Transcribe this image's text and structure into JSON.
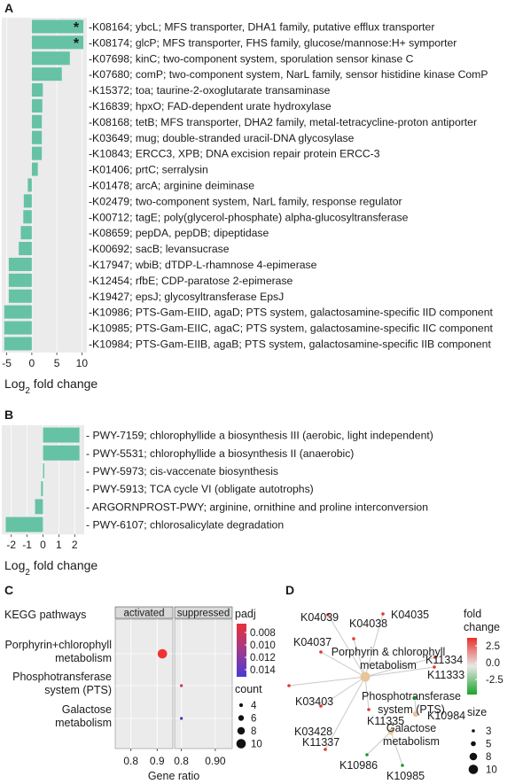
{
  "chart_data": [
    {
      "panel": "A",
      "type": "bar",
      "orientation": "horizontal",
      "xlabel": "Log2 fold change",
      "xlim": [
        -6,
        11
      ],
      "xticks": [
        -5,
        0,
        5,
        10
      ],
      "bar_color": "#66c2a5",
      "categories": [
        "-K08164; ybcL; MFS transporter, DHA1 family, putative efflux transporter",
        "-K08174; glcP; MFS transporter, FHS family, glucose/mannose:H+ symporter",
        "-K07698; kinC; two-component system, sporulation sensor kinase C",
        "-K07680; comP; two-component system, NarL family, sensor histidine kinase ComP",
        "-K15372; toa; taurine-2-oxoglutarate transaminase",
        "-K16839; hpxO; FAD-dependent urate hydroxylase",
        "-K08168; tetB; MFS transporter, DHA2 family, metal-tetracycline-proton antiporter",
        "-K03649; mug; double-stranded uracil-DNA glycosylase",
        "-K10843; ERCC3, XPB; DNA excision repair protein ERCC-3",
        "-K01406; prtC; serralysin",
        "-K01478; arcA; arginine deiminase",
        "-K02479; two-component system, NarL family, response regulator",
        "-K00712; tagE; poly(glycerol-phosphate) alpha-glucosyltransferase",
        "-K08659; pepDA, pepDB; dipeptidase",
        "-K00692; sacB; levansucrase",
        "-K17947; wbiB; dTDP-L-rhamnose 4-epimerase",
        "-K12454; rfbE; CDP-paratose 2-epimerase",
        "-K19427; epsJ; glycosyltransferase EpsJ",
        "-K10986; PTS-Gam-EIID, agaD; PTS system, galactosamine-specific IID component",
        "-K10985; PTS-Gam-EIIC, agaC; PTS system, galactosamine-specific IIC component",
        "-K10984; PTS-Gam-EIIB, agaB; PTS system, galactosamine-specific IIB component"
      ],
      "values": [
        10.3,
        10.3,
        7.6,
        6.0,
        2.2,
        2.1,
        2.0,
        2.0,
        2.0,
        1.2,
        -0.8,
        -1.6,
        -1.7,
        -2.2,
        -2.6,
        -4.6,
        -4.6,
        -4.6,
        -5.5,
        -5.5,
        -5.5
      ],
      "significant": [
        true,
        true,
        false,
        false,
        false,
        false,
        false,
        false,
        false,
        false,
        false,
        false,
        false,
        false,
        false,
        false,
        false,
        false,
        false,
        false,
        false
      ],
      "star": "*"
    },
    {
      "panel": "B",
      "type": "bar",
      "orientation": "horizontal",
      "xlabel": "Log2 fold change",
      "xlim": [
        -2.6,
        2.6
      ],
      "xticks": [
        -2,
        -1,
        0,
        1,
        2
      ],
      "bar_color": "#66c2a5",
      "categories": [
        "- PWY-7159; chlorophyllide a biosynthesis III (aerobic, light independent)",
        "- PWY-5531; chlorophyllide a biosynthesis II (anaerobic)",
        "- PWY-5973; cis-vaccenate biosynthesis",
        "- PWY-5913; TCA cycle VI (obligate autotrophs)",
        "- ARGORNPROST-PWY; arginine, ornithine and proline interconversion",
        "- PWY-6107; chlorosalicylate degradation"
      ],
      "values": [
        2.3,
        2.3,
        0.08,
        -0.12,
        -0.5,
        -2.35
      ]
    },
    {
      "panel": "C",
      "type": "scatter",
      "row_title": "KEGG pathways",
      "facets": [
        "activated",
        "suppressed"
      ],
      "xlabel": "Gene ratio",
      "facet_xticks": [
        [
          0.8,
          0.9
        ],
        [
          0.8,
          0.9
        ]
      ],
      "facet_xticklabels": [
        [
          "0.8",
          "0.9"
        ],
        [
          "0.8",
          "0.90"
        ]
      ],
      "facet_xlim": [
        [
          0.74,
          0.96
        ],
        [
          0.78,
          0.95
        ]
      ],
      "categories": [
        "Porphyrin+chlorophyll metabolism",
        "Phosphotransferase system (PTS)",
        "Galactose metabolism"
      ],
      "category_lines": [
        [
          "Porphyrin+chlorophyll",
          "metabolism"
        ],
        [
          "Phosphotransferase",
          "system (PTS)"
        ],
        [
          "Galactose",
          "metabolism"
        ]
      ],
      "points": [
        {
          "facet": "activated",
          "category": 0,
          "x": 0.92,
          "count": 10,
          "padj": 0.008
        },
        {
          "facet": "suppressed",
          "category": 1,
          "x": 0.8,
          "count": 3,
          "padj": 0.009
        },
        {
          "facet": "suppressed",
          "category": 2,
          "x": 0.8,
          "count": 3,
          "padj": 0.013
        }
      ],
      "color_legend": {
        "title": "padj",
        "ticks": [
          "0.008",
          "0.010",
          "0.012",
          "0.014"
        ],
        "colors": [
          "#e8303a",
          "#a03a8a",
          "#4a3ad8"
        ]
      },
      "size_legend": {
        "title": "count",
        "values": [
          4,
          6,
          8,
          10
        ]
      }
    },
    {
      "panel": "D",
      "type": "network",
      "hubs": [
        {
          "id": "porph",
          "lines": [
            "Porphyrin & chlorophyll",
            "metabolism"
          ],
          "size": 10
        },
        {
          "id": "pts",
          "lines": [
            "Phosphotransferase",
            "system (PTS)"
          ],
          "size": 3
        },
        {
          "id": "gal",
          "lines": [
            "Galactose",
            "metabolism"
          ],
          "size": 3
        }
      ],
      "genes": [
        {
          "label": "K04039",
          "hub": "porph",
          "fold": 2.5
        },
        {
          "label": "K04038",
          "hub": "porph",
          "fold": 2.5
        },
        {
          "label": "K04035",
          "hub": "porph",
          "fold": 2.5
        },
        {
          "label": "K04037",
          "hub": "porph",
          "fold": 2.5
        },
        {
          "label": "K11334",
          "hub": "porph",
          "fold": 2.5
        },
        {
          "label": "K11333",
          "hub": "porph",
          "fold": 2.5
        },
        {
          "label": "K03403",
          "hub": "porph",
          "fold": 2.5
        },
        {
          "label": "K03428",
          "hub": "porph",
          "fold": 2.5
        },
        {
          "label": "K11335",
          "hub": "porph",
          "fold": 2.5
        },
        {
          "label": "K11337",
          "hub": "porph",
          "fold": 2.5
        },
        {
          "label": "K10984",
          "hub": "pts",
          "fold": -2.5
        },
        {
          "label": "K10986",
          "hub": "gal",
          "fold": -2.5
        },
        {
          "label": "K10985",
          "hub": "gal",
          "fold": -2.5
        }
      ],
      "fold_legend": {
        "title": [
          "fold",
          "change"
        ],
        "ticks": [
          "2.5",
          "0.0",
          "-2.5"
        ]
      },
      "size_legend": {
        "title": "size",
        "values": [
          3,
          5,
          8,
          10
        ]
      }
    }
  ],
  "panel_labels": [
    "A",
    "B",
    "C",
    "D"
  ]
}
